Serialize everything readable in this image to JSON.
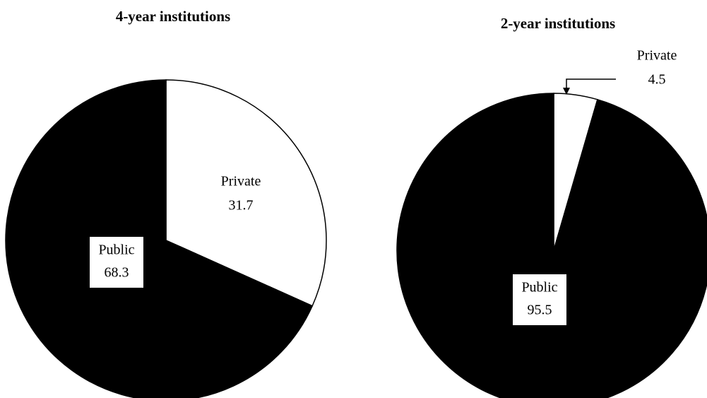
{
  "chart_data": [
    {
      "type": "pie",
      "title": "4-year institutions",
      "categories": [
        "Private",
        "Public"
      ],
      "values": [
        31.7,
        68.3
      ],
      "colors": [
        "#ffffff",
        "#000000"
      ]
    },
    {
      "type": "pie",
      "title": "2-year institutions",
      "categories": [
        "Private",
        "Public"
      ],
      "values": [
        4.5,
        95.5
      ],
      "colors": [
        "#ffffff",
        "#000000"
      ]
    }
  ]
}
